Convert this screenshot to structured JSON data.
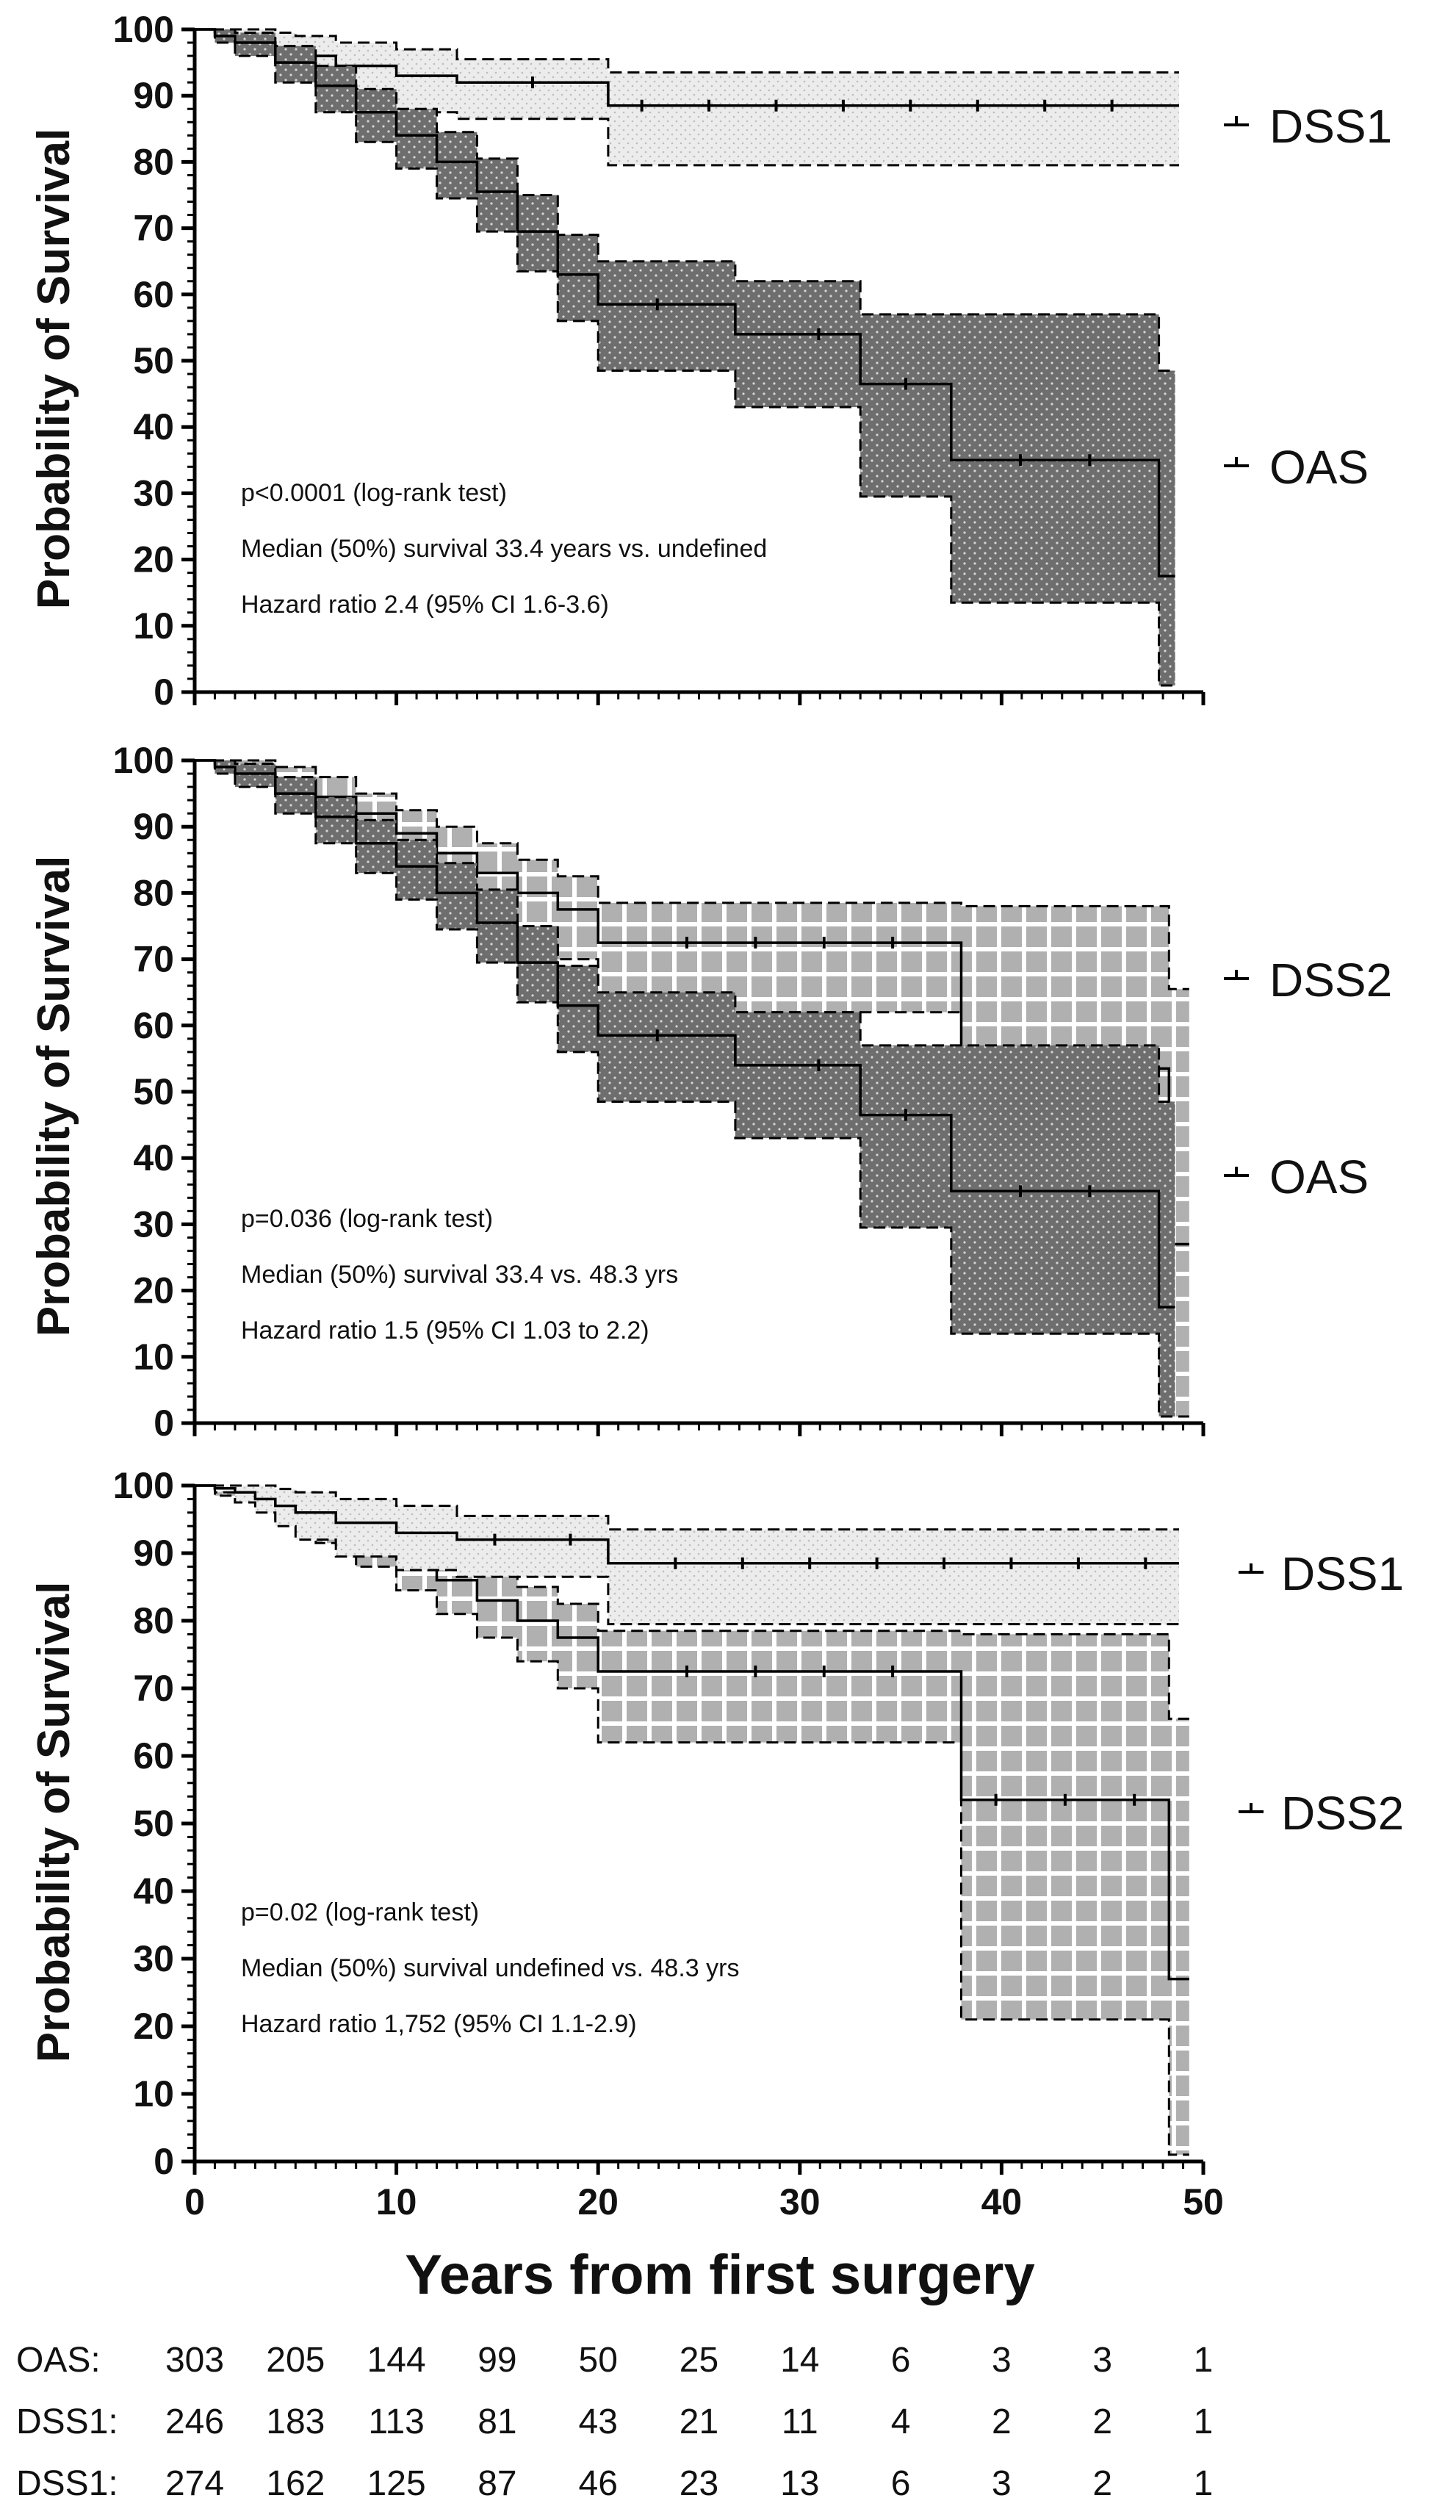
{
  "figure": {
    "x_axis_label": "Years from first surgery",
    "x_ticks": [
      "0",
      "10",
      "20",
      "30",
      "40",
      "50"
    ],
    "y_ticks": [
      "0",
      "10",
      "20",
      "30",
      "40",
      "50",
      "60",
      "70",
      "80",
      "90",
      "100"
    ],
    "y_axis_label": "Probability of Survival"
  },
  "risk_table": {
    "rows": [
      {
        "label": "OAS:",
        "values": [
          "303",
          "205",
          "144",
          "99",
          "50",
          "25",
          "14",
          "6",
          "3",
          "3",
          "1"
        ]
      },
      {
        "label": "DSS1:",
        "values": [
          "246",
          "183",
          "113",
          "81",
          "43",
          "21",
          "11",
          "4",
          "2",
          "2",
          "1"
        ]
      },
      {
        "label": "DSS1:",
        "values": [
          "274",
          "162",
          "125",
          "87",
          "46",
          "23",
          "13",
          "6",
          "3",
          "2",
          "1"
        ]
      }
    ]
  },
  "colors": {
    "oas_band": "#6e6e6e",
    "dss1_band": "#e8e8e8",
    "dss2_band": "#b4b4b4",
    "line": "#000000"
  },
  "chart_data": [
    {
      "type": "line",
      "subtype": "kaplan-meier",
      "title": "",
      "xlabel": "Years from first surgery",
      "ylabel": "Probability of Survival",
      "xlim": [
        0,
        50
      ],
      "ylim": [
        0,
        100
      ],
      "annotations": [
        "p<0.0001  (log-rank test)",
        "Median (50%) survival 33.4 years vs. undefined",
        "Hazard ratio 2.4 (95% CI 1.6-3.6)"
      ],
      "series": [
        {
          "name": "DSS1",
          "band": "dss1_band",
          "x": [
            0,
            1,
            2,
            3,
            4,
            5,
            7,
            10,
            13,
            20.5,
            48.8
          ],
          "y": [
            100,
            99.6,
            99,
            98,
            97,
            96,
            94.5,
            93,
            92,
            88.5,
            88.5
          ],
          "upper": [
            100,
            100,
            100,
            100,
            99.5,
            99,
            98,
            97,
            95.5,
            93.5,
            93.5
          ],
          "lower": [
            100,
            99,
            97.5,
            96,
            94,
            92,
            89.5,
            87.5,
            86.5,
            79.5,
            79.5
          ]
        },
        {
          "name": "OAS",
          "band": "oas_band",
          "x": [
            0,
            1,
            2,
            4,
            6,
            8,
            10,
            12,
            14,
            16,
            18,
            20,
            21,
            26.8,
            33,
            37.5,
            47.8,
            48.6
          ],
          "y": [
            100,
            99,
            98,
            95,
            91.5,
            87.5,
            84,
            80,
            75.5,
            69.5,
            63,
            58.5,
            58.5,
            54,
            46.5,
            35,
            17.5,
            17.5
          ],
          "upper": [
            100,
            100,
            99.5,
            97.5,
            94.5,
            91,
            88,
            84.5,
            80.5,
            75,
            69,
            65,
            65,
            62,
            57,
            57,
            48.5,
            48.5
          ],
          "lower": [
            100,
            98,
            96,
            92,
            87.5,
            83,
            79,
            74.5,
            69.5,
            63.5,
            56,
            48.5,
            48.5,
            43,
            29.5,
            13.5,
            1,
            1
          ]
        }
      ],
      "series_labels": [
        "DSS1",
        "OAS"
      ]
    },
    {
      "type": "line",
      "subtype": "kaplan-meier",
      "title": "",
      "xlabel": "Years from first surgery",
      "ylabel": "Probability of Survival",
      "xlim": [
        0,
        50
      ],
      "ylim": [
        0,
        100
      ],
      "annotations": [
        "p=0.036  (log-rank test)",
        "Median (50%) survival 33.4 vs. 48.3 yrs",
        "Hazard ratio 1.5 (95% CI 1.03 to 2.2)"
      ],
      "series": [
        {
          "name": "DSS2",
          "band": "dss2_band",
          "x": [
            0,
            1,
            2,
            4,
            6,
            8,
            10,
            12,
            14,
            16,
            18,
            20,
            21,
            38,
            48.3,
            49.3
          ],
          "y": [
            100,
            99.5,
            99,
            97,
            94.5,
            92,
            89,
            86,
            83,
            80,
            77.5,
            72.5,
            72.5,
            53.5,
            27,
            27
          ],
          "upper": [
            100,
            100,
            100,
            99,
            97.5,
            95,
            92.5,
            90,
            87.5,
            85,
            82.5,
            78.5,
            78.5,
            78,
            65.5,
            65.5
          ],
          "lower": [
            100,
            98.5,
            97.5,
            95,
            91.5,
            88,
            84.5,
            81,
            77.5,
            74,
            70,
            62,
            62,
            21,
            1,
            1
          ]
        },
        {
          "name": "OAS",
          "band": "oas_band",
          "x": [
            0,
            1,
            2,
            4,
            6,
            8,
            10,
            12,
            14,
            16,
            18,
            20,
            21,
            26.8,
            33,
            37.5,
            47.8,
            48.6
          ],
          "y": [
            100,
            99,
            98,
            95,
            91.5,
            87.5,
            84,
            80,
            75.5,
            69.5,
            63,
            58.5,
            58.5,
            54,
            46.5,
            35,
            17.5,
            17.5
          ],
          "upper": [
            100,
            100,
            99.5,
            97.5,
            94.5,
            91,
            88,
            84.5,
            80.5,
            75,
            69,
            65,
            65,
            62,
            57,
            57,
            48.5,
            48.5
          ],
          "lower": [
            100,
            98,
            96,
            92,
            87.5,
            83,
            79,
            74.5,
            69.5,
            63.5,
            56,
            48.5,
            48.5,
            43,
            29.5,
            13.5,
            1,
            1
          ]
        }
      ],
      "series_labels": [
        "DSS2",
        "OAS"
      ]
    },
    {
      "type": "line",
      "subtype": "kaplan-meier",
      "title": "",
      "xlabel": "Years from first surgery",
      "ylabel": "Probability of Survival",
      "xlim": [
        0,
        50
      ],
      "ylim": [
        0,
        100
      ],
      "annotations": [
        "p=0.02  (log-rank test)",
        "Median (50%) survival undefined vs. 48.3 yrs",
        "Hazard ratio 1,752 (95% CI 1.1-2.9)"
      ],
      "series": [
        {
          "name": "DSS2",
          "band": "dss2_band",
          "x": [
            0,
            1,
            2,
            4,
            6,
            8,
            10,
            12,
            14,
            16,
            18,
            20,
            21,
            38,
            48.3,
            49.3
          ],
          "y": [
            100,
            99.5,
            99,
            97,
            94.5,
            92,
            89,
            86,
            83,
            80,
            77.5,
            72.5,
            72.5,
            53.5,
            27,
            27
          ],
          "upper": [
            100,
            100,
            100,
            99,
            97.5,
            95,
            92.5,
            90,
            87.5,
            85,
            82.5,
            78.5,
            78.5,
            78,
            65.5,
            65.5
          ],
          "lower": [
            100,
            98.5,
            97.5,
            95,
            91.5,
            88,
            84.5,
            81,
            77.5,
            74,
            70,
            62,
            62,
            21,
            1,
            1
          ]
        },
        {
          "name": "DSS1",
          "band": "dss1_band",
          "x": [
            0,
            1,
            2,
            3,
            4,
            5,
            7,
            10,
            13,
            20.5,
            48.8
          ],
          "y": [
            100,
            99.6,
            99,
            98,
            97,
            96,
            94.5,
            93,
            92,
            88.5,
            88.5
          ],
          "upper": [
            100,
            100,
            100,
            100,
            99.5,
            99,
            98,
            97,
            95.5,
            93.5,
            93.5
          ],
          "lower": [
            100,
            99,
            97.5,
            96,
            94,
            92,
            89.5,
            87.5,
            86.5,
            79.5,
            79.5
          ]
        }
      ],
      "series_labels": [
        "DSS1",
        "DSS2"
      ]
    }
  ]
}
